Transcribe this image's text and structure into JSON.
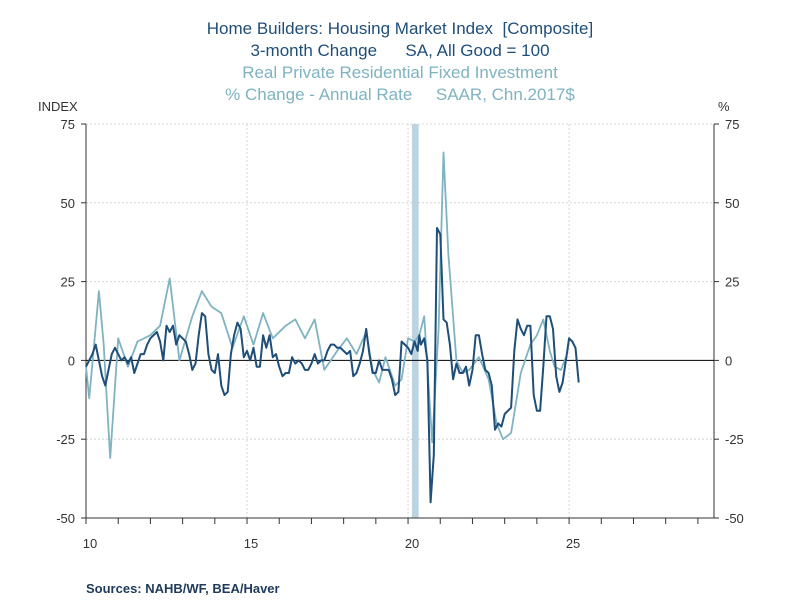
{
  "titles": {
    "line1": "Home Builders: Housing Market Index  [Composite]",
    "line2": "3-month Change      SA, All Good = 100",
    "line3": "Real Private Residential Fixed Investment",
    "line4": "% Change - Annual Rate     SAAR, Chn.2017$"
  },
  "sources": "Sources:  NAHB/WF, BEA/Haver",
  "colors": {
    "series_dark": "#1f4e79",
    "series_light": "#7fb3c2",
    "recession": "#bcd4e2",
    "grid": "#cccccc",
    "axis": "#333333"
  },
  "chart_data": {
    "type": "line",
    "left_axis_label": "INDEX",
    "right_axis_label": "%",
    "ylim": [
      -50,
      75
    ],
    "yticks": [
      75,
      50,
      25,
      0,
      -25,
      -50
    ],
    "ytick_labels": [
      "75",
      "50",
      "25",
      "0",
      "-25",
      "-50"
    ],
    "xlim": [
      2010.0,
      2029.5
    ],
    "xticks": [
      2010,
      2015,
      2020,
      2025
    ],
    "xtick_labels": [
      "10",
      "15",
      "20",
      "25"
    ],
    "recession": [
      2020.12,
      2020.33
    ],
    "grid": true,
    "series": [
      {
        "axis": "left",
        "points": [
          [
            2010.0,
            -2
          ],
          [
            2010.1,
            0
          ],
          [
            2010.2,
            2
          ],
          [
            2010.3,
            5
          ],
          [
            2010.4,
            0
          ],
          [
            2010.5,
            -5
          ],
          [
            2010.6,
            -8
          ],
          [
            2010.7,
            -3
          ],
          [
            2010.8,
            2
          ],
          [
            2010.9,
            4
          ],
          [
            2011.0,
            2
          ],
          [
            2011.1,
            0
          ],
          [
            2011.2,
            1
          ],
          [
            2011.3,
            -1
          ],
          [
            2011.4,
            1
          ],
          [
            2011.5,
            -4
          ],
          [
            2011.6,
            -1
          ],
          [
            2011.7,
            2
          ],
          [
            2011.8,
            2
          ],
          [
            2011.9,
            5
          ],
          [
            2012.0,
            7
          ],
          [
            2012.1,
            8
          ],
          [
            2012.2,
            9
          ],
          [
            2012.3,
            6
          ],
          [
            2012.4,
            0
          ],
          [
            2012.5,
            11
          ],
          [
            2012.6,
            9
          ],
          [
            2012.7,
            11
          ],
          [
            2012.8,
            5
          ],
          [
            2012.9,
            8
          ],
          [
            2013.0,
            7
          ],
          [
            2013.1,
            6
          ],
          [
            2013.2,
            2
          ],
          [
            2013.3,
            -3
          ],
          [
            2013.4,
            -1
          ],
          [
            2013.5,
            8
          ],
          [
            2013.6,
            15
          ],
          [
            2013.7,
            14
          ],
          [
            2013.8,
            2
          ],
          [
            2013.9,
            -3
          ],
          [
            2014.0,
            -4
          ],
          [
            2014.1,
            2
          ],
          [
            2014.2,
            -8
          ],
          [
            2014.3,
            -11
          ],
          [
            2014.4,
            -10
          ],
          [
            2014.5,
            2
          ],
          [
            2014.6,
            8
          ],
          [
            2014.7,
            12
          ],
          [
            2014.8,
            10
          ],
          [
            2014.9,
            1
          ],
          [
            2015.0,
            3
          ],
          [
            2015.1,
            0
          ],
          [
            2015.2,
            4
          ],
          [
            2015.3,
            -2
          ],
          [
            2015.4,
            -2
          ],
          [
            2015.5,
            8
          ],
          [
            2015.6,
            4
          ],
          [
            2015.7,
            8
          ],
          [
            2015.8,
            1
          ],
          [
            2015.9,
            2
          ],
          [
            2016.0,
            -2
          ],
          [
            2016.1,
            -5
          ],
          [
            2016.2,
            -4
          ],
          [
            2016.3,
            -4
          ],
          [
            2016.4,
            1
          ],
          [
            2016.5,
            -1
          ],
          [
            2016.6,
            0
          ],
          [
            2016.7,
            -1
          ],
          [
            2016.8,
            -3
          ],
          [
            2016.9,
            -3
          ],
          [
            2017.0,
            -1
          ],
          [
            2017.1,
            2
          ],
          [
            2017.2,
            -1
          ],
          [
            2017.3,
            0
          ],
          [
            2017.4,
            0
          ],
          [
            2017.5,
            3
          ],
          [
            2017.6,
            5
          ],
          [
            2017.7,
            5
          ],
          [
            2017.8,
            4
          ],
          [
            2017.9,
            4
          ],
          [
            2018.0,
            3
          ],
          [
            2018.1,
            2
          ],
          [
            2018.2,
            3
          ],
          [
            2018.3,
            -5
          ],
          [
            2018.4,
            -4
          ],
          [
            2018.5,
            -1
          ],
          [
            2018.6,
            3
          ],
          [
            2018.7,
            10
          ],
          [
            2018.8,
            2
          ],
          [
            2018.9,
            -4
          ],
          [
            2019.0,
            -4
          ],
          [
            2019.1,
            0
          ],
          [
            2019.2,
            -3
          ],
          [
            2019.3,
            -3
          ],
          [
            2019.4,
            -3
          ],
          [
            2019.5,
            -6
          ],
          [
            2019.6,
            -11
          ],
          [
            2019.7,
            -10
          ],
          [
            2019.8,
            6
          ],
          [
            2019.9,
            5
          ],
          [
            2020.0,
            4
          ],
          [
            2020.1,
            2
          ],
          [
            2020.2,
            6
          ],
          [
            2020.3,
            3
          ],
          [
            2020.35,
            8
          ],
          [
            2020.4,
            5
          ],
          [
            2020.5,
            7
          ],
          [
            2020.6,
            0
          ],
          [
            2020.7,
            -45
          ],
          [
            2020.8,
            -30
          ],
          [
            2020.9,
            42
          ],
          [
            2021.0,
            40
          ],
          [
            2021.1,
            13
          ],
          [
            2021.2,
            12
          ],
          [
            2021.3,
            5
          ],
          [
            2021.4,
            -6
          ],
          [
            2021.5,
            -1
          ],
          [
            2021.6,
            -4
          ],
          [
            2021.7,
            -4
          ],
          [
            2021.8,
            -2
          ],
          [
            2021.9,
            -8
          ],
          [
            2022.0,
            -3
          ],
          [
            2022.1,
            8
          ],
          [
            2022.2,
            8
          ],
          [
            2022.3,
            2
          ],
          [
            2022.4,
            -3
          ],
          [
            2022.5,
            -4
          ],
          [
            2022.6,
            -8
          ],
          [
            2022.7,
            -22
          ],
          [
            2022.8,
            -20
          ],
          [
            2022.9,
            -21
          ],
          [
            2023.0,
            -17
          ],
          [
            2023.1,
            -16
          ],
          [
            2023.2,
            -15
          ],
          [
            2023.3,
            3
          ],
          [
            2023.4,
            13
          ],
          [
            2023.5,
            10
          ],
          [
            2023.6,
            8
          ],
          [
            2023.7,
            11
          ],
          [
            2023.8,
            11
          ],
          [
            2023.9,
            -11
          ],
          [
            2024.0,
            -16
          ],
          [
            2024.1,
            -16
          ],
          [
            2024.2,
            -2
          ],
          [
            2024.3,
            14
          ],
          [
            2024.4,
            14
          ],
          [
            2024.5,
            10
          ],
          [
            2024.6,
            -5
          ],
          [
            2024.7,
            -10
          ],
          [
            2024.8,
            -7
          ],
          [
            2024.9,
            0
          ],
          [
            2025.0,
            7
          ],
          [
            2025.1,
            6
          ],
          [
            2025.2,
            4
          ],
          [
            2025.3,
            -7
          ]
        ]
      },
      {
        "axis": "right",
        "points": [
          [
            2010.0,
            -2
          ],
          [
            2010.1,
            -12
          ],
          [
            2010.25,
            5
          ],
          [
            2010.4,
            22
          ],
          [
            2010.55,
            5
          ],
          [
            2010.65,
            -13
          ],
          [
            2010.75,
            -31
          ],
          [
            2011.0,
            7
          ],
          [
            2011.3,
            -2
          ],
          [
            2011.6,
            6
          ],
          [
            2012.0,
            8
          ],
          [
            2012.3,
            11
          ],
          [
            2012.6,
            26
          ],
          [
            2012.9,
            0
          ],
          [
            2013.3,
            14
          ],
          [
            2013.6,
            22
          ],
          [
            2013.9,
            17
          ],
          [
            2014.2,
            15
          ],
          [
            2014.55,
            4
          ],
          [
            2014.9,
            14
          ],
          [
            2015.2,
            5
          ],
          [
            2015.5,
            15
          ],
          [
            2015.8,
            7
          ],
          [
            2016.2,
            11
          ],
          [
            2016.5,
            13
          ],
          [
            2016.8,
            7
          ],
          [
            2017.1,
            13
          ],
          [
            2017.4,
            -3
          ],
          [
            2017.8,
            3
          ],
          [
            2018.1,
            7
          ],
          [
            2018.4,
            2
          ],
          [
            2018.7,
            9
          ],
          [
            2018.9,
            -3
          ],
          [
            2019.1,
            -7
          ],
          [
            2019.3,
            1
          ],
          [
            2019.6,
            -8
          ],
          [
            2019.8,
            -6
          ],
          [
            2020.0,
            7
          ],
          [
            2020.2,
            6
          ],
          [
            2020.35,
            8
          ],
          [
            2020.5,
            14
          ],
          [
            2020.75,
            -26
          ],
          [
            2020.95,
            10
          ],
          [
            2021.1,
            66
          ],
          [
            2021.25,
            34
          ],
          [
            2021.5,
            0
          ],
          [
            2021.7,
            -4
          ],
          [
            2021.9,
            -3
          ],
          [
            2022.2,
            1
          ],
          [
            2022.5,
            -6
          ],
          [
            2022.75,
            -20
          ],
          [
            2022.95,
            -25
          ],
          [
            2023.2,
            -23
          ],
          [
            2023.5,
            -4
          ],
          [
            2023.8,
            5
          ],
          [
            2024.0,
            8
          ],
          [
            2024.2,
            13
          ],
          [
            2024.4,
            3
          ],
          [
            2024.55,
            -2
          ],
          [
            2024.75,
            -3
          ],
          [
            2024.9,
            1
          ]
        ]
      }
    ]
  }
}
